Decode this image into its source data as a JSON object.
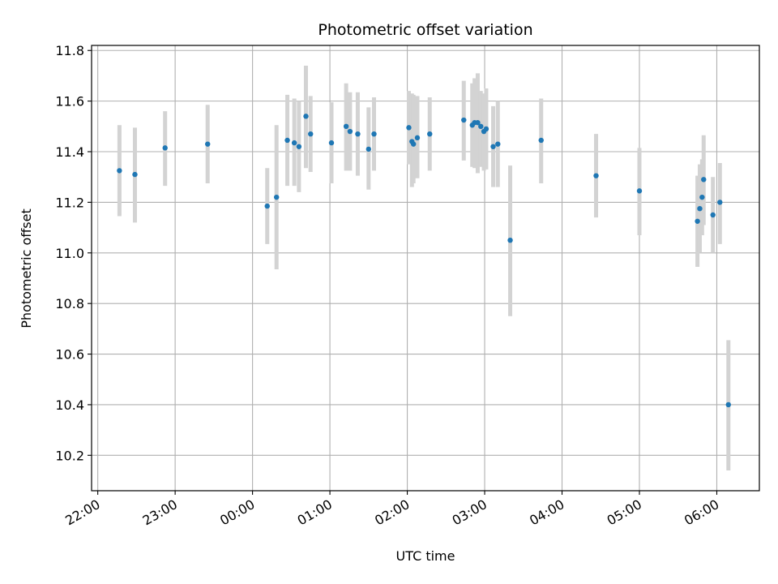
{
  "chart_data": {
    "type": "scatter",
    "title": "Photometric offset variation",
    "xlabel": "UTC time",
    "ylabel": "Photometric offset",
    "grid": true,
    "legend": "none",
    "x_unit": "hours relative to 00:00 UTC",
    "xlim": [
      -2.08,
      6.55
    ],
    "ylim": [
      10.06,
      11.82
    ],
    "x_ticks": [
      {
        "value": -2,
        "label": "22:00"
      },
      {
        "value": -1,
        "label": "23:00"
      },
      {
        "value": 0,
        "label": "00:00"
      },
      {
        "value": 1,
        "label": "01:00"
      },
      {
        "value": 2,
        "label": "02:00"
      },
      {
        "value": 3,
        "label": "03:00"
      },
      {
        "value": 4,
        "label": "04:00"
      },
      {
        "value": 5,
        "label": "05:00"
      },
      {
        "value": 6,
        "label": "06:00"
      }
    ],
    "y_ticks": [
      {
        "value": 10.2,
        "label": "10.2"
      },
      {
        "value": 10.4,
        "label": "10.4"
      },
      {
        "value": 10.6,
        "label": "10.6"
      },
      {
        "value": 10.8,
        "label": "10.8"
      },
      {
        "value": 11.0,
        "label": "11.0"
      },
      {
        "value": 11.2,
        "label": "11.2"
      },
      {
        "value": 11.4,
        "label": "11.4"
      },
      {
        "value": 11.6,
        "label": "11.6"
      },
      {
        "value": 11.8,
        "label": "11.8"
      }
    ],
    "colors": {
      "point": "#1f77b4",
      "errorbar": "#d3d3d3",
      "grid": "#b0b0b0",
      "axis": "#000000"
    },
    "series": [
      {
        "name": "offset",
        "points": [
          {
            "x": -1.72,
            "y": 11.325,
            "lo": 11.145,
            "hi": 11.505
          },
          {
            "x": -1.52,
            "y": 11.31,
            "lo": 11.12,
            "hi": 11.495
          },
          {
            "x": -1.13,
            "y": 11.415,
            "lo": 11.265,
            "hi": 11.56
          },
          {
            "x": -0.58,
            "y": 11.43,
            "lo": 11.275,
            "hi": 11.585
          },
          {
            "x": 0.19,
            "y": 11.185,
            "lo": 11.035,
            "hi": 11.335
          },
          {
            "x": 0.31,
            "y": 11.22,
            "lo": 10.935,
            "hi": 11.505
          },
          {
            "x": 0.45,
            "y": 11.445,
            "lo": 11.265,
            "hi": 11.625
          },
          {
            "x": 0.54,
            "y": 11.435,
            "lo": 11.265,
            "hi": 11.61
          },
          {
            "x": 0.6,
            "y": 11.42,
            "lo": 11.24,
            "hi": 11.6
          },
          {
            "x": 0.69,
            "y": 11.54,
            "lo": 11.335,
            "hi": 11.74
          },
          {
            "x": 0.75,
            "y": 11.47,
            "lo": 11.32,
            "hi": 11.62
          },
          {
            "x": 1.02,
            "y": 11.435,
            "lo": 11.275,
            "hi": 11.595
          },
          {
            "x": 1.21,
            "y": 11.5,
            "lo": 11.325,
            "hi": 11.67
          },
          {
            "x": 1.26,
            "y": 11.48,
            "lo": 11.325,
            "hi": 11.635
          },
          {
            "x": 1.36,
            "y": 11.47,
            "lo": 11.305,
            "hi": 11.635
          },
          {
            "x": 1.5,
            "y": 11.41,
            "lo": 11.25,
            "hi": 11.575
          },
          {
            "x": 1.57,
            "y": 11.47,
            "lo": 11.325,
            "hi": 11.615
          },
          {
            "x": 2.02,
            "y": 11.495,
            "lo": 11.35,
            "hi": 11.64
          },
          {
            "x": 2.06,
            "y": 11.44,
            "lo": 11.26,
            "hi": 11.63
          },
          {
            "x": 2.08,
            "y": 11.43,
            "lo": 11.275,
            "hi": 11.625
          },
          {
            "x": 2.13,
            "y": 11.455,
            "lo": 11.295,
            "hi": 11.62
          },
          {
            "x": 2.29,
            "y": 11.47,
            "lo": 11.325,
            "hi": 11.615
          },
          {
            "x": 2.73,
            "y": 11.525,
            "lo": 11.365,
            "hi": 11.68
          },
          {
            "x": 2.84,
            "y": 11.505,
            "lo": 11.34,
            "hi": 11.67
          },
          {
            "x": 2.87,
            "y": 11.515,
            "lo": 11.335,
            "hi": 11.69
          },
          {
            "x": 2.91,
            "y": 11.515,
            "lo": 11.315,
            "hi": 11.71
          },
          {
            "x": 2.95,
            "y": 11.5,
            "lo": 11.34,
            "hi": 11.64
          },
          {
            "x": 2.99,
            "y": 11.48,
            "lo": 11.325,
            "hi": 11.63
          },
          {
            "x": 3.02,
            "y": 11.49,
            "lo": 11.33,
            "hi": 11.65
          },
          {
            "x": 3.11,
            "y": 11.42,
            "lo": 11.26,
            "hi": 11.58
          },
          {
            "x": 3.17,
            "y": 11.43,
            "lo": 11.26,
            "hi": 11.6
          },
          {
            "x": 3.33,
            "y": 11.05,
            "lo": 10.75,
            "hi": 11.345
          },
          {
            "x": 3.73,
            "y": 11.445,
            "lo": 11.275,
            "hi": 11.61
          },
          {
            "x": 4.44,
            "y": 11.305,
            "lo": 11.14,
            "hi": 11.47
          },
          {
            "x": 5.0,
            "y": 11.245,
            "lo": 11.07,
            "hi": 11.415
          },
          {
            "x": 5.75,
            "y": 11.125,
            "lo": 10.945,
            "hi": 11.305
          },
          {
            "x": 5.78,
            "y": 11.175,
            "lo": 11.0,
            "hi": 11.35
          },
          {
            "x": 5.81,
            "y": 11.22,
            "lo": 11.07,
            "hi": 11.37
          },
          {
            "x": 5.83,
            "y": 11.29,
            "lo": 11.11,
            "hi": 11.465
          },
          {
            "x": 5.95,
            "y": 11.15,
            "lo": 11.0,
            "hi": 11.3
          },
          {
            "x": 6.04,
            "y": 11.2,
            "lo": 11.035,
            "hi": 11.355
          },
          {
            "x": 6.15,
            "y": 10.4,
            "lo": 10.14,
            "hi": 10.655
          }
        ]
      }
    ]
  }
}
